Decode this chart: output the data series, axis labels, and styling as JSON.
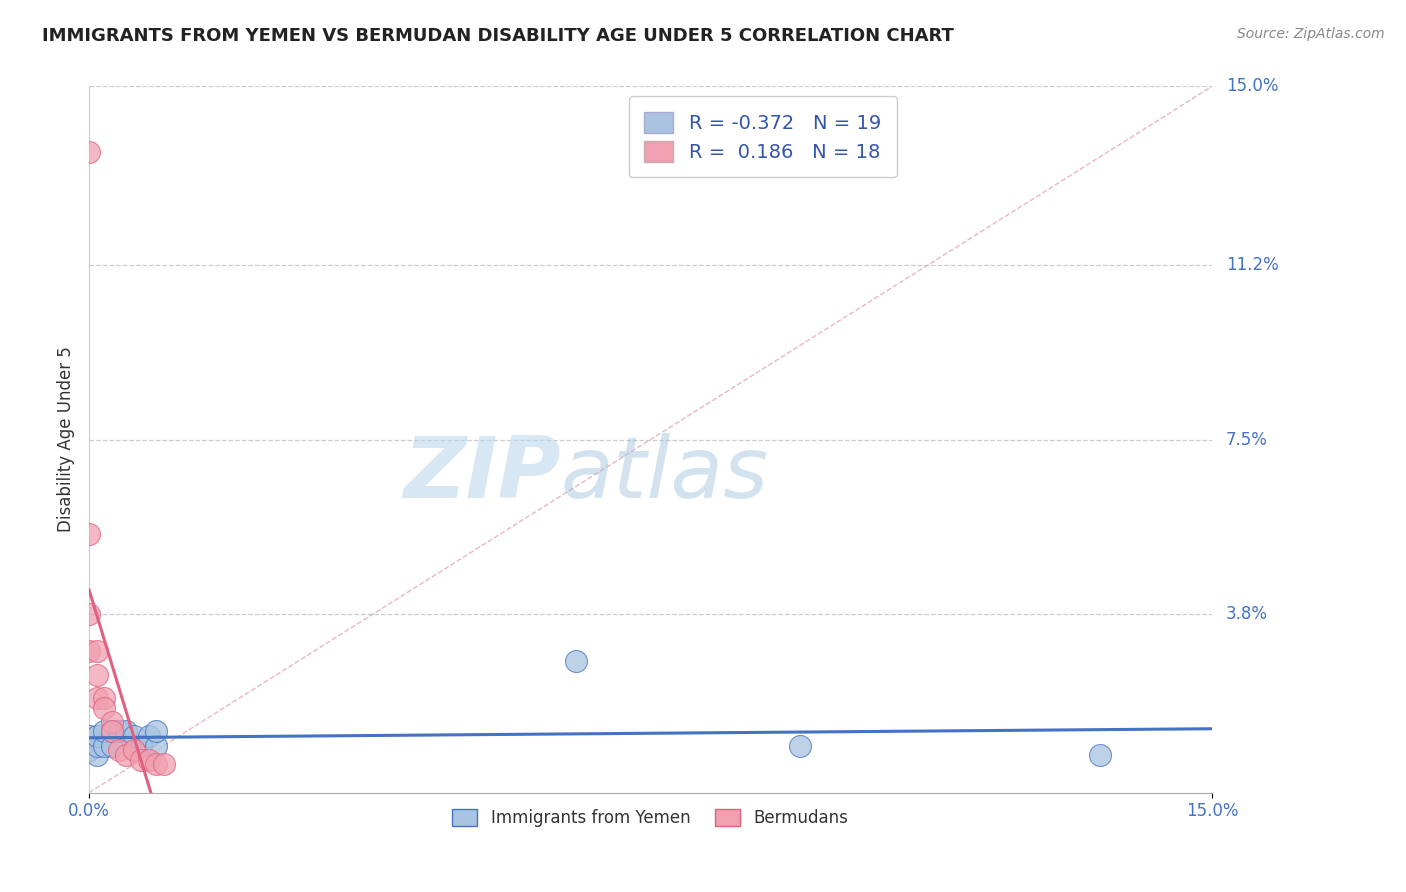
{
  "title": "IMMIGRANTS FROM YEMEN VS BERMUDAN DISABILITY AGE UNDER 5 CORRELATION CHART",
  "source": "Source: ZipAtlas.com",
  "ylabel_label": "Disability Age Under 5",
  "xlim": [
    0.0,
    0.15
  ],
  "ylim": [
    0.0,
    0.15
  ],
  "ytick_labels": [
    "3.8%",
    "7.5%",
    "11.2%",
    "15.0%"
  ],
  "ytick_values": [
    0.038,
    0.075,
    0.112,
    0.15
  ],
  "grid_color": "#cccccc",
  "background_color": "#ffffff",
  "legend_label_1": "Immigrants from Yemen",
  "legend_label_2": "Bermudans",
  "R1": -0.372,
  "N1": 19,
  "R2": 0.186,
  "N2": 18,
  "color_blue": "#a8c4e0",
  "color_pink": "#f0a0b0",
  "color_blue_line": "#4472c4",
  "color_pink_line": "#e06080",
  "color_diagonal": "#e8b0b8",
  "title_color": "#222222",
  "title_fontsize": 13,
  "blue_points_x": [
    0.0,
    0.0,
    0.001,
    0.001,
    0.001,
    0.002,
    0.002,
    0.003,
    0.003,
    0.004,
    0.005,
    0.006,
    0.007,
    0.008,
    0.009,
    0.009,
    0.065,
    0.095,
    0.135
  ],
  "blue_points_y": [
    0.009,
    0.012,
    0.008,
    0.01,
    0.012,
    0.01,
    0.013,
    0.01,
    0.013,
    0.013,
    0.013,
    0.012,
    0.01,
    0.012,
    0.01,
    0.013,
    0.028,
    0.01,
    0.008
  ],
  "pink_points_x": [
    0.0,
    0.0,
    0.0,
    0.0,
    0.001,
    0.001,
    0.001,
    0.002,
    0.002,
    0.003,
    0.003,
    0.004,
    0.005,
    0.006,
    0.007,
    0.008,
    0.009,
    0.01
  ],
  "pink_points_y": [
    0.136,
    0.055,
    0.038,
    0.03,
    0.03,
    0.025,
    0.02,
    0.02,
    0.018,
    0.015,
    0.013,
    0.009,
    0.008,
    0.009,
    0.007,
    0.007,
    0.006,
    0.006
  ]
}
